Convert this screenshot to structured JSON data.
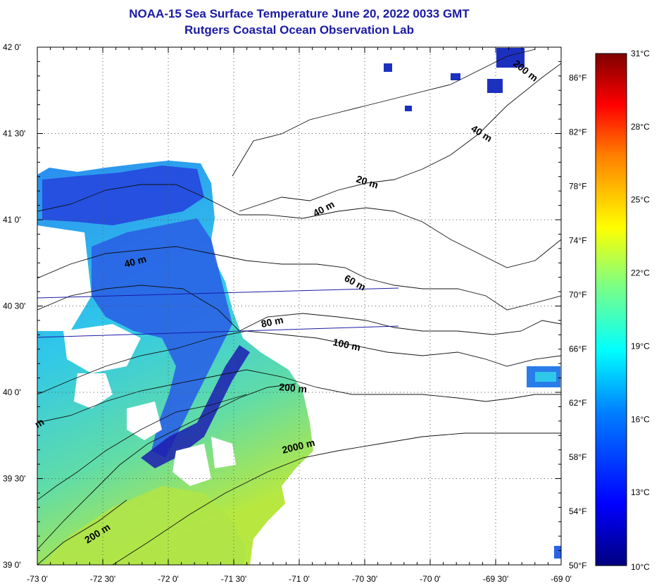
{
  "header": {
    "title": "NOAA-15 Sea Surface Temperature June 20, 2022 0033 GMT",
    "subtitle": "Rutgers Coastal Ocean Observation Lab"
  },
  "map": {
    "lon_range": [
      -73.0,
      -69.0
    ],
    "lat_range": [
      39.0,
      42.0
    ],
    "lon_ticks": [
      "-73 0'",
      "-72 30'",
      "-72 0'",
      "-71 30'",
      "-71 0'",
      "-70 30'",
      "-70 0'",
      "-69 30'",
      "-69 0'"
    ],
    "lat_ticks": [
      "42 0'",
      "41 30'",
      "41 0'",
      "40 30'",
      "40 0'",
      "39 30'",
      "39 0'"
    ],
    "grid": true
  },
  "contour_labels": [
    "20 m",
    "40 m",
    "40 m",
    "40 m",
    "60 m",
    "80 m",
    "100 m",
    "200 m",
    "200 m",
    "2000 m",
    "200 m",
    "m"
  ],
  "colorbar": {
    "celsius_labels": [
      "31°C",
      "28°C",
      "25°C",
      "22°C",
      "19°C",
      "16°C",
      "13°C",
      "10°C"
    ],
    "fahrenheit_labels": [
      "86°F",
      "82°F",
      "78°F",
      "74°F",
      "70°F",
      "66°F",
      "62°F",
      "58°F",
      "54°F",
      "50°F"
    ],
    "range_celsius": [
      10,
      31
    ],
    "colors": [
      "#00007f",
      "#0000ff",
      "#0080ff",
      "#00ffff",
      "#80ff80",
      "#ffff00",
      "#ff8000",
      "#ff0000",
      "#7f0000"
    ]
  },
  "sst_colors": {
    "cold": "#2450e0",
    "cool": "#2aa0f0",
    "mid": "#30d0e8",
    "warm": "#a8e850",
    "dark": "#1818a8"
  }
}
